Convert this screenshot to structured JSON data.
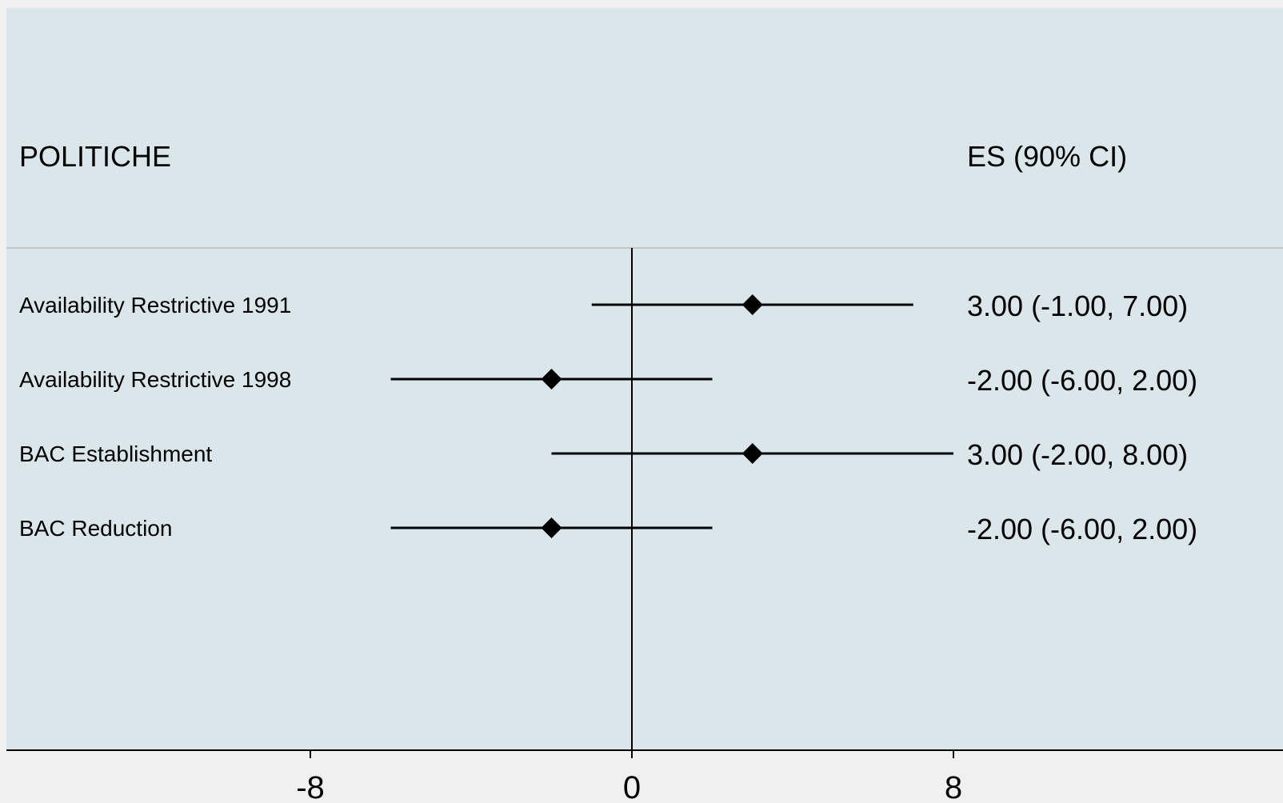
{
  "chart_data": {
    "type": "forest",
    "header": {
      "label_column": "POLITICHE",
      "estimate_column": "ES (90% CI)"
    },
    "rows": [
      {
        "label": "Availability Restrictive 1991",
        "es": 3,
        "lower": -1,
        "upper": 7,
        "ci_text": "3.00 (-1.00, 7.00)"
      },
      {
        "label": "Availability Restrictive 1998",
        "es": -2,
        "lower": -6,
        "upper": 2,
        "ci_text": "-2.00 (-6.00, 2.00)"
      },
      {
        "label": "BAC Establishment",
        "es": 3,
        "lower": -2,
        "upper": 8,
        "ci_text": "3.00 (-2.00, 8.00)"
      },
      {
        "label": "BAC Reduction",
        "es": -2,
        "lower": -6,
        "upper": 2,
        "ci_text": "-2.00 (-6.00, 2.00)"
      }
    ],
    "x_ticks": [
      -8,
      0,
      8
    ],
    "x_tick_labels": [
      "-8",
      "0",
      "8"
    ],
    "reference_line": 0,
    "colors": {
      "plot_background": "#dae6ea",
      "outer_background": "#f0f0f0",
      "marker": "#000000",
      "separator": "#c4c4c4"
    }
  }
}
